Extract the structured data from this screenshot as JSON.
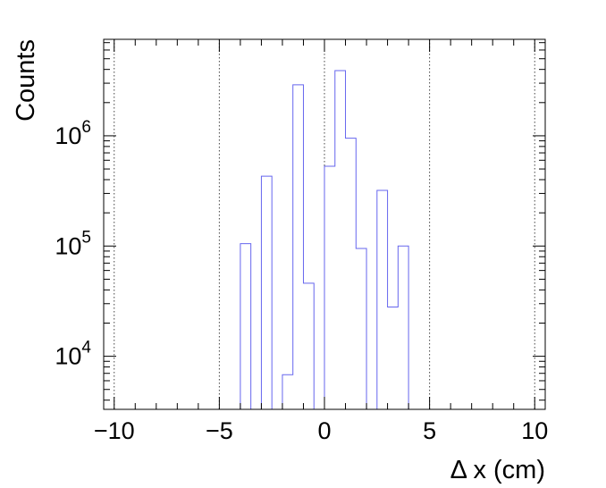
{
  "chart_data": {
    "type": "histogram",
    "xlabel": "Δ x (cm)",
    "ylabel": "Counts",
    "xlim": [
      -10.5,
      10.5
    ],
    "ylim": [
      3300,
      7500000
    ],
    "y_scale": "log",
    "x_ticks": [
      -10,
      -5,
      0,
      5,
      10
    ],
    "x_tick_labels": [
      "−10",
      "−5",
      "0",
      "5",
      "10"
    ],
    "y_ticks": [
      10000,
      100000,
      1000000
    ],
    "y_tick_base": "10",
    "y_tick_exponents": [
      "4",
      "5",
      "6"
    ],
    "grid": "vertical-dotted",
    "series": [
      {
        "color": "#6666ee",
        "bin_edges": [
          -4,
          -3.5,
          -3,
          -2.5,
          -2,
          -1.5,
          -1,
          -0.5,
          0,
          0.5,
          1,
          1.5,
          2,
          2.5,
          3,
          3.5,
          4
        ],
        "counts": [
          105000,
          0,
          430000,
          0,
          6800,
          2900000,
          46000,
          0,
          530000,
          3900000,
          950000,
          95000,
          0,
          320000,
          28000,
          100000
        ]
      }
    ]
  }
}
